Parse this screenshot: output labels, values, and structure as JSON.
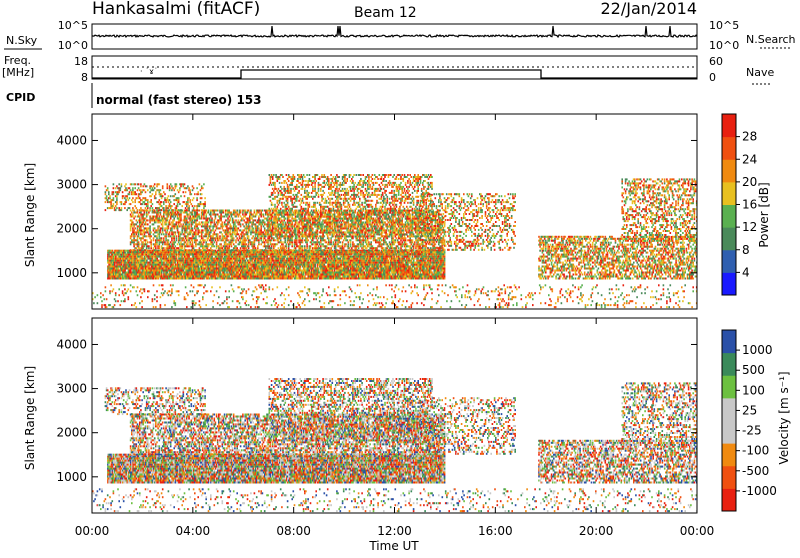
{
  "header": {
    "station": "Hankasalmi (fitACF)",
    "beam": "Beam 12",
    "date": "22/Jan/2014"
  },
  "top_strip": {
    "left_label": "N.Sky",
    "left_ticks": [
      "10^5",
      "10^0"
    ],
    "right_ticks": [
      "10^5",
      "10^0"
    ],
    "right_label": "N.Search"
  },
  "freq_strip": {
    "left_label_1": "Freq.",
    "left_label_2": "[MHz]",
    "left_ticks": [
      "18",
      "8"
    ],
    "right_ticks": [
      "60",
      "0"
    ],
    "right_label": "Nave"
  },
  "cpid": {
    "label": "CPID",
    "text": "normal (fast stereo) 153"
  },
  "colors": {
    "power": [
      "#1a1aff",
      "#2f5fb0",
      "#4a8a5a",
      "#5ab050",
      "#e8c020",
      "#f08a10",
      "#f05010",
      "#e82010"
    ],
    "velocity": [
      "#e82010",
      "#f05010",
      "#f08a10",
      "#c8c8c8",
      "#c8c8c8",
      "#6cc040",
      "#3a8a5a",
      "#2a50a8"
    ]
  },
  "chart_data": [
    {
      "type": "heatmap",
      "title": "",
      "ylabel": "Slant Range [km]",
      "xlabel": "",
      "ylim": [
        180,
        4600
      ],
      "xlim": [
        0,
        24
      ],
      "yticks": [
        "1000",
        "2000",
        "3000",
        "4000"
      ],
      "colorbar": {
        "label": "Power [dB]",
        "ticks": [
          "4",
          "8",
          "12",
          "16",
          "20",
          "24",
          "28"
        ],
        "range": [
          0,
          32
        ]
      }
    },
    {
      "type": "heatmap",
      "title": "",
      "ylabel": "Slant Range [km]",
      "xlabel": "Time UT",
      "ylim": [
        180,
        4600
      ],
      "xlim": [
        0,
        24
      ],
      "xticks": [
        "00:00",
        "04:00",
        "08:00",
        "12:00",
        "16:00",
        "20:00",
        "00:00"
      ],
      "yticks": [
        "1000",
        "2000",
        "3000",
        "4000"
      ],
      "colorbar": {
        "label": "Velocity [m s⁻¹]",
        "ticks": [
          "1000",
          "500",
          "100",
          "25",
          "-25",
          "-100",
          "-500",
          "-1000"
        ]
      }
    }
  ]
}
